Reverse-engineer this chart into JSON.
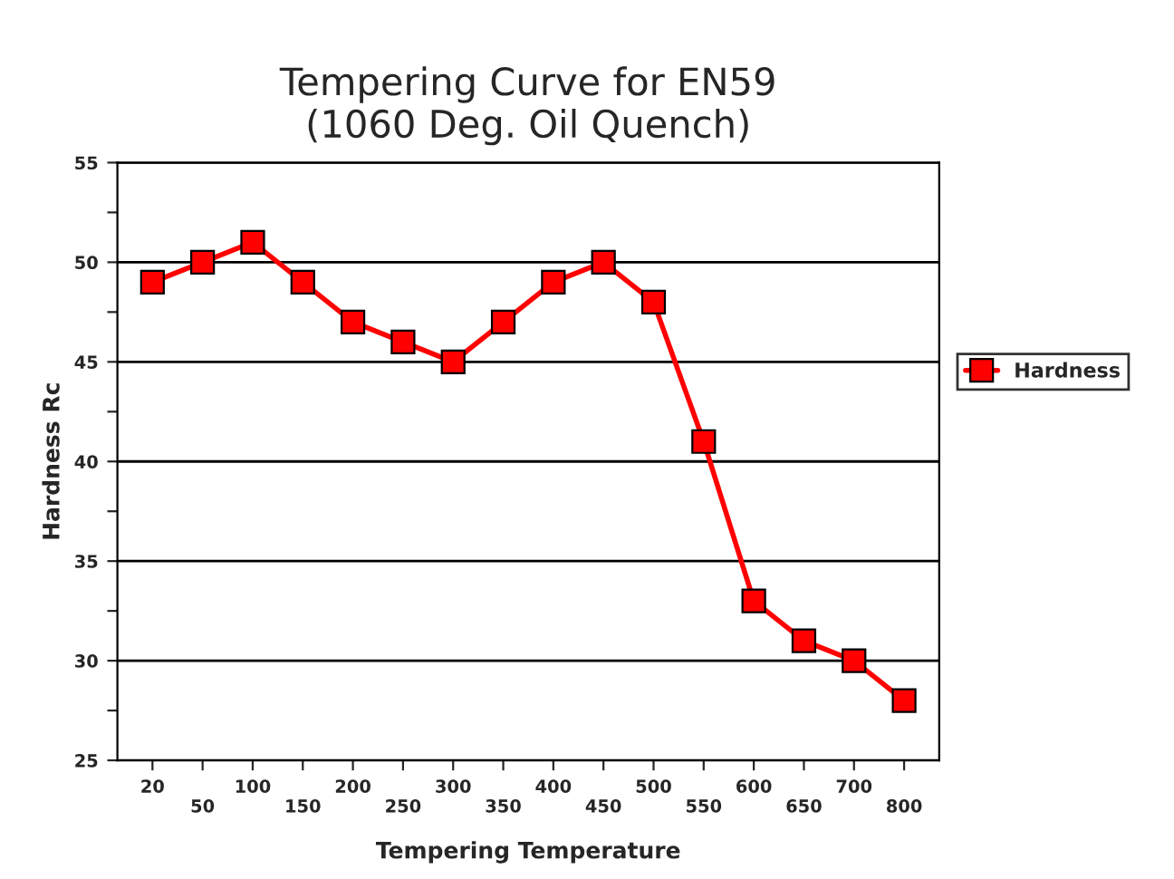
{
  "chart_data": {
    "type": "line",
    "title": "Tempering Curve for EN59\n(1060 Deg. Oil Quench)",
    "xlabel": "Tempering Temperature",
    "ylabel": "Hardness Rc",
    "categories": [
      "20",
      "50",
      "100",
      "150",
      "200",
      "250",
      "300",
      "350",
      "400",
      "450",
      "500",
      "550",
      "600",
      "650",
      "700",
      "800"
    ],
    "series": [
      {
        "name": "Hardness",
        "color": "#ff0000",
        "values": [
          49,
          50,
          51,
          49,
          47,
          46,
          45,
          47,
          49,
          50,
          48,
          41,
          33,
          31,
          30,
          28
        ]
      }
    ],
    "ylim": [
      25,
      55
    ],
    "yticks": [
      25,
      {
        "value": 27.5,
        "label": null
      },
      30,
      {
        "value": 32.5,
        "label": null
      },
      35,
      {
        "value": 37.5,
        "label": null
      },
      40,
      {
        "value": 42.5,
        "label": null
      },
      45,
      {
        "value": 47.5,
        "label": null
      },
      50,
      {
        "value": 52.5,
        "label": null
      },
      55
    ],
    "grid": "y",
    "legend": "right",
    "marker": "square",
    "line_style": "solid"
  }
}
